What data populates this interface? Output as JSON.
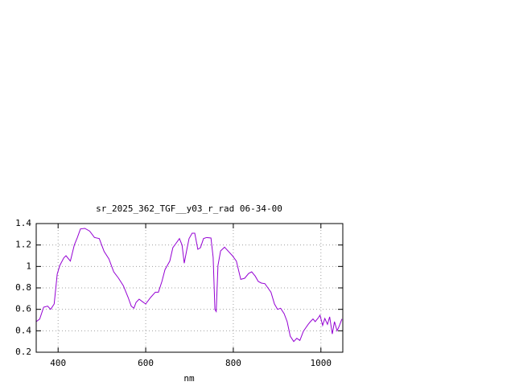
{
  "chart_data": {
    "type": "line",
    "title": "sr_2025_362_TGF__y03_r_rad 06-34-00",
    "x_label": "nm",
    "xlim": [
      350,
      1050
    ],
    "xticks": [
      400,
      600,
      800,
      1000
    ],
    "ylim": [
      0.2,
      1.4
    ],
    "yticks": [
      0.2,
      0.4,
      0.6,
      0.8,
      1,
      1.2,
      1.4
    ],
    "grid": true,
    "x": [
      350,
      358,
      367,
      376,
      383,
      391,
      398,
      404,
      413,
      418,
      428,
      437,
      444,
      451,
      461,
      472,
      483,
      494,
      505,
      516,
      527,
      538,
      549,
      560,
      567,
      573,
      578,
      585,
      593,
      600,
      611,
      622,
      629,
      637,
      644,
      655,
      662,
      670,
      677,
      683,
      688,
      694,
      699,
      706,
      712,
      719,
      725,
      732,
      739,
      749,
      754,
      758,
      761,
      765,
      771,
      780,
      789,
      798,
      807,
      817,
      826,
      835,
      842,
      850,
      857,
      864,
      872,
      879,
      886,
      894,
      901,
      908,
      916,
      923,
      930,
      938,
      945,
      952,
      960,
      965,
      971,
      976,
      982,
      987,
      993,
      998,
      1004,
      1009,
      1015,
      1020,
      1026,
      1031,
      1037,
      1042,
      1048
    ],
    "series": [
      {
        "color": "#9400d3",
        "values": [
          0.485,
          0.51,
          0.62,
          0.63,
          0.6,
          0.65,
          0.93,
          1.01,
          1.08,
          1.1,
          1.05,
          1.2,
          1.27,
          1.35,
          1.355,
          1.33,
          1.27,
          1.26,
          1.14,
          1.07,
          0.95,
          0.89,
          0.82,
          0.71,
          0.63,
          0.61,
          0.665,
          0.695,
          0.67,
          0.65,
          0.71,
          0.76,
          0.76,
          0.86,
          0.97,
          1.05,
          1.175,
          1.22,
          1.26,
          1.2,
          1.03,
          1.16,
          1.26,
          1.31,
          1.31,
          1.16,
          1.175,
          1.26,
          1.27,
          1.265,
          1.085,
          0.6,
          0.58,
          1.01,
          1.145,
          1.18,
          1.14,
          1.1,
          1.05,
          0.88,
          0.89,
          0.935,
          0.95,
          0.91,
          0.86,
          0.845,
          0.84,
          0.8,
          0.76,
          0.65,
          0.6,
          0.61,
          0.56,
          0.485,
          0.35,
          0.3,
          0.33,
          0.31,
          0.395,
          0.425,
          0.46,
          0.485,
          0.51,
          0.485,
          0.515,
          0.545,
          0.45,
          0.515,
          0.46,
          0.53,
          0.37,
          0.485,
          0.4,
          0.445,
          0.51
        ]
      }
    ]
  }
}
